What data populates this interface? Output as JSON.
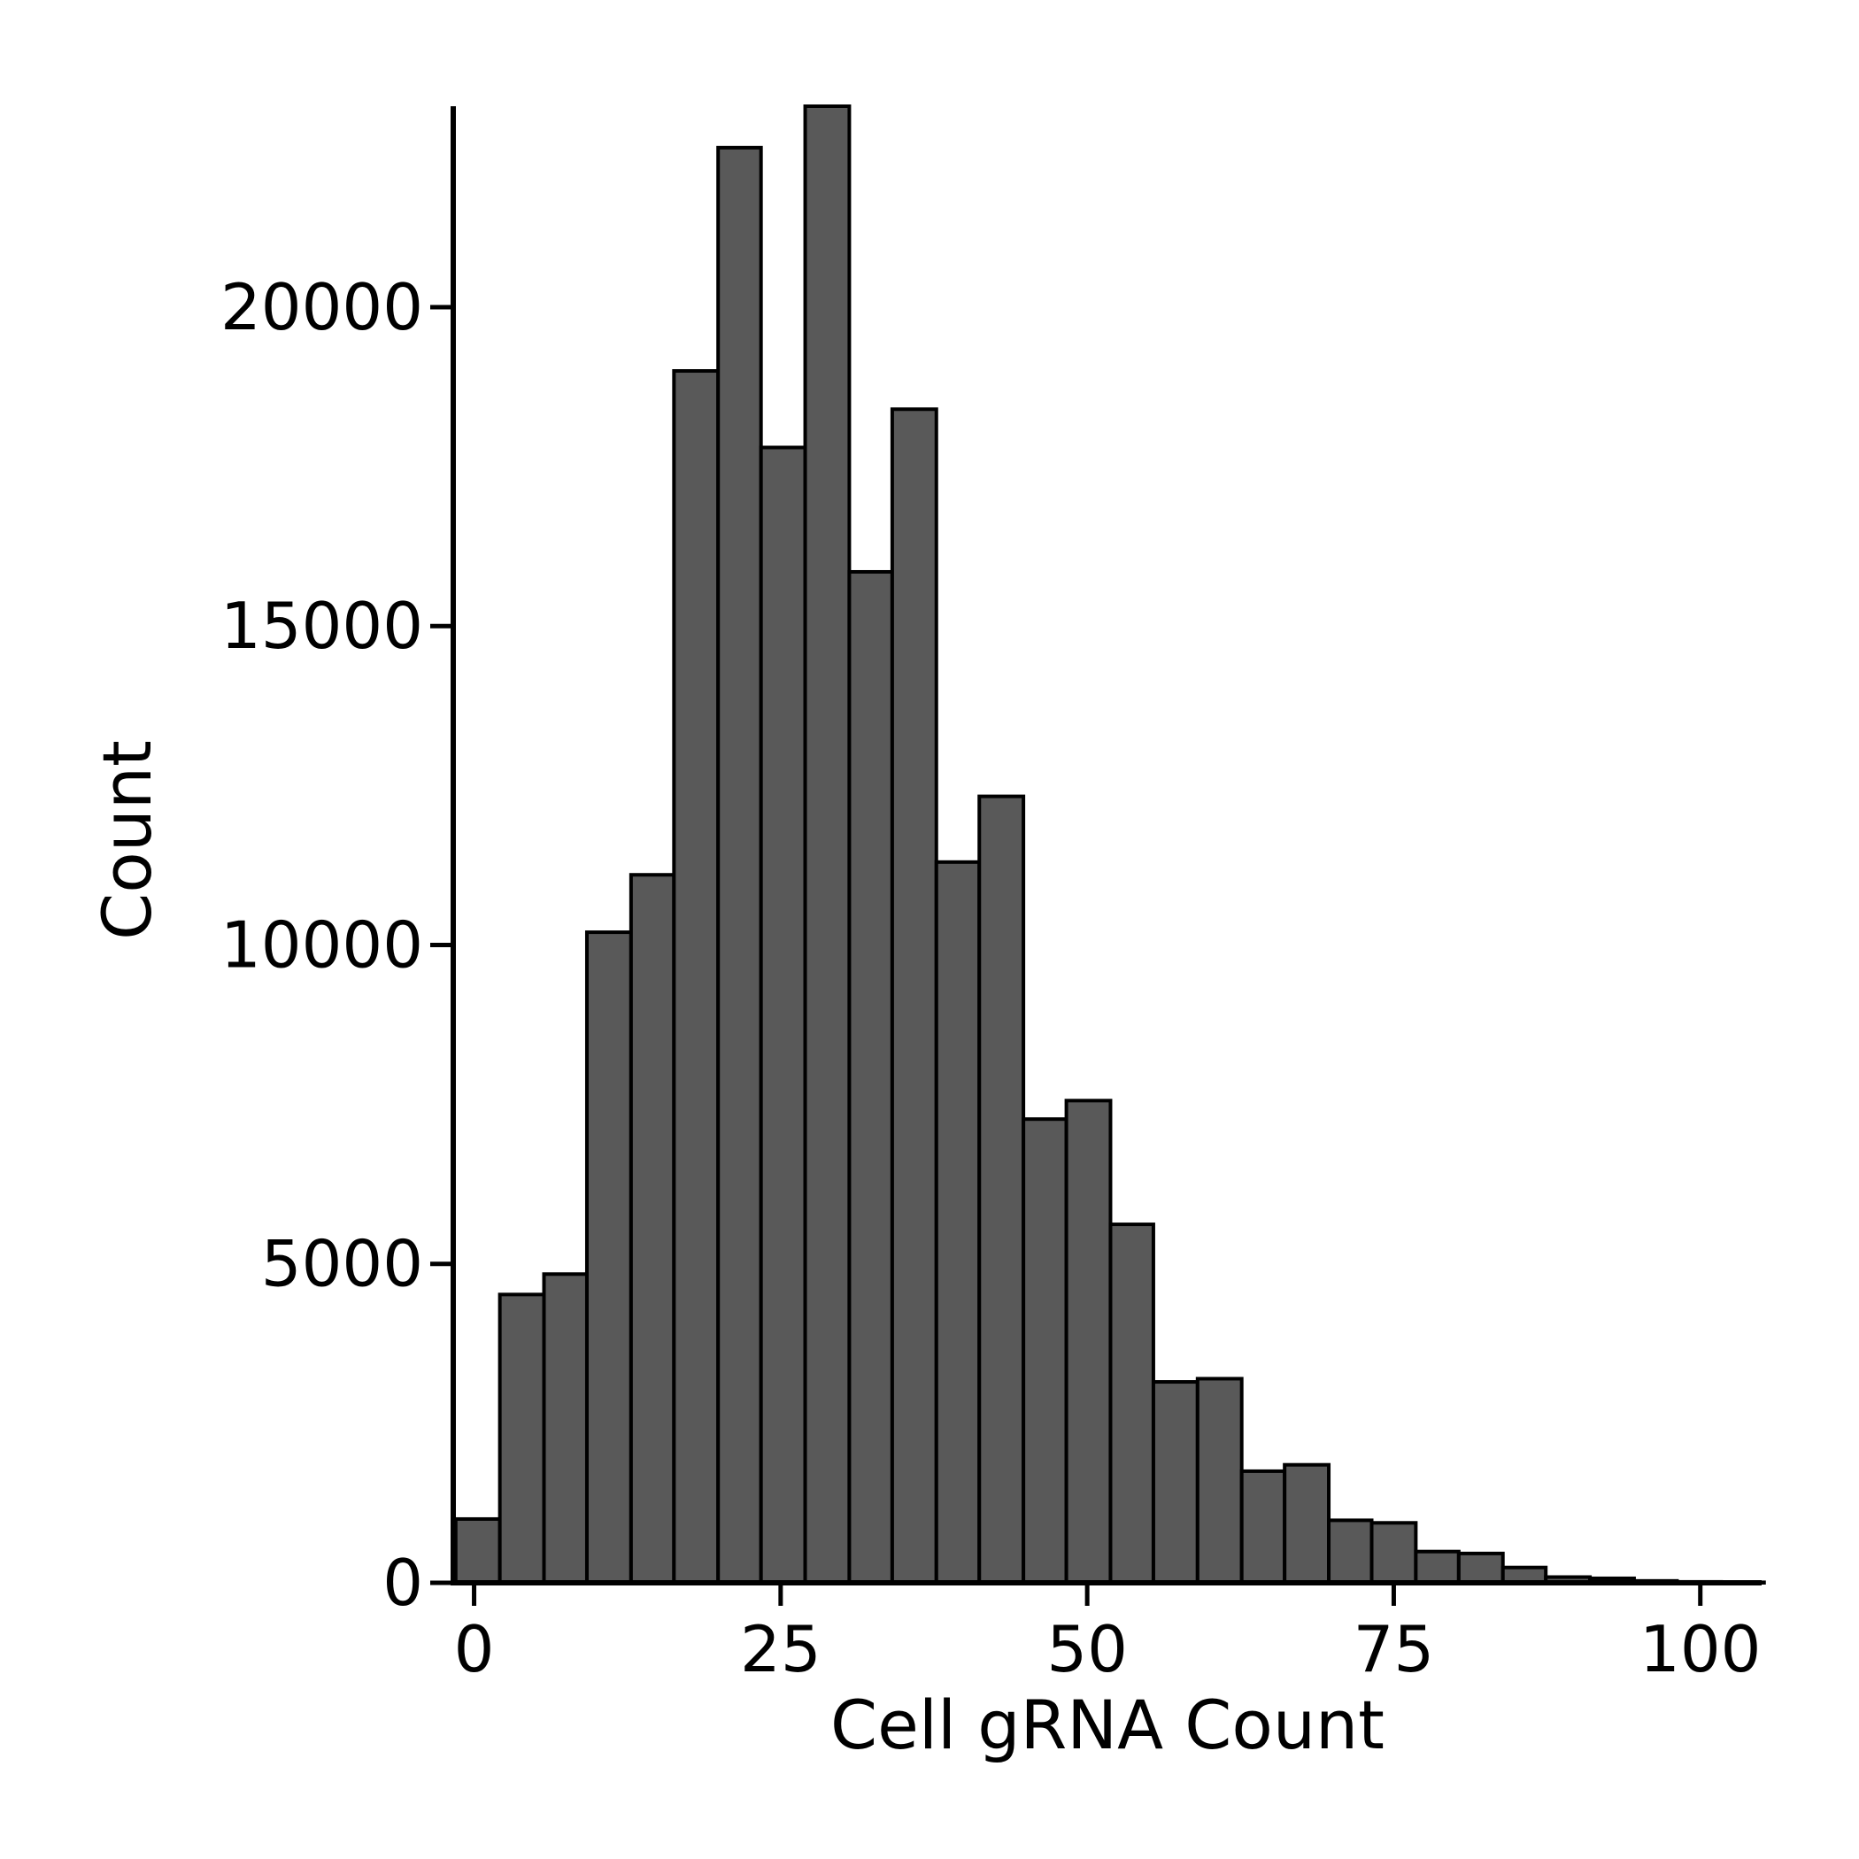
{
  "chart_data": {
    "type": "bar",
    "xlabel": "Cell gRNA Count",
    "ylabel": "Count",
    "xlim": [
      -1.7,
      105
    ],
    "ylim": [
      0,
      23150
    ],
    "xticks": [
      0,
      25,
      50,
      75,
      100
    ],
    "yticks": [
      0,
      5000,
      10000,
      15000,
      20000
    ],
    "grid": false,
    "bar_color": "#595959",
    "edge_color": "#000000",
    "bins": [
      {
        "start": -1.5,
        "end": 2.1,
        "value": 1000
      },
      {
        "start": 2.1,
        "end": 5.7,
        "value": 4520
      },
      {
        "start": 5.7,
        "end": 9.2,
        "value": 4840
      },
      {
        "start": 9.2,
        "end": 12.8,
        "value": 10200
      },
      {
        "start": 12.8,
        "end": 16.3,
        "value": 11100
      },
      {
        "start": 16.3,
        "end": 19.9,
        "value": 19000
      },
      {
        "start": 19.9,
        "end": 23.4,
        "value": 22500
      },
      {
        "start": 23.4,
        "end": 27.0,
        "value": 17800
      },
      {
        "start": 27.0,
        "end": 30.6,
        "value": 23150
      },
      {
        "start": 30.6,
        "end": 34.1,
        "value": 15850
      },
      {
        "start": 34.1,
        "end": 37.7,
        "value": 18400
      },
      {
        "start": 37.7,
        "end": 41.2,
        "value": 11300
      },
      {
        "start": 41.2,
        "end": 44.8,
        "value": 12330
      },
      {
        "start": 44.8,
        "end": 48.3,
        "value": 7270
      },
      {
        "start": 48.3,
        "end": 51.9,
        "value": 7560
      },
      {
        "start": 51.9,
        "end": 55.4,
        "value": 5620
      },
      {
        "start": 55.4,
        "end": 59.0,
        "value": 3150
      },
      {
        "start": 59.0,
        "end": 62.6,
        "value": 3200
      },
      {
        "start": 62.6,
        "end": 66.1,
        "value": 1750
      },
      {
        "start": 66.1,
        "end": 69.7,
        "value": 1850
      },
      {
        "start": 69.7,
        "end": 73.2,
        "value": 980
      },
      {
        "start": 73.2,
        "end": 76.8,
        "value": 940
      },
      {
        "start": 76.8,
        "end": 80.3,
        "value": 490
      },
      {
        "start": 80.3,
        "end": 83.9,
        "value": 460
      },
      {
        "start": 83.9,
        "end": 87.4,
        "value": 240
      },
      {
        "start": 87.4,
        "end": 91.0,
        "value": 90
      },
      {
        "start": 91.0,
        "end": 94.6,
        "value": 70
      },
      {
        "start": 94.6,
        "end": 98.1,
        "value": 30
      },
      {
        "start": 98.1,
        "end": 101.7,
        "value": 15
      },
      {
        "start": 101.7,
        "end": 105.2,
        "value": 8
      }
    ]
  }
}
